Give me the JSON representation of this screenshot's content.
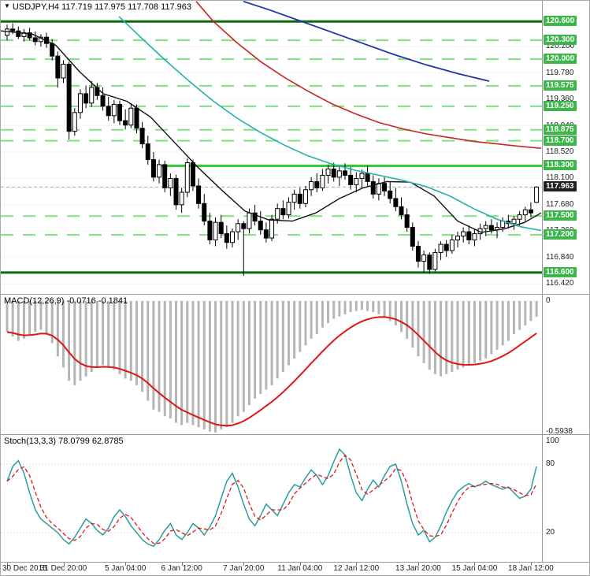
{
  "window": {
    "title": "USDJPY,H4 117.719 117.975 117.708 117.963"
  },
  "panels": {
    "macd_label": "MACD(12,26,9) -0.0716 -0.1841",
    "stoch_label": "Stoch(13,3,3) 78.0799 62.8785"
  },
  "colors": {
    "level_tag_bg": "#3cb54a",
    "current_tag_bg": "#1f1f1f",
    "tag_text": "#ffffff",
    "dark_level": "#0c6b0c",
    "dashed_level": "#82e082",
    "bright_level": "#33cc33",
    "grid": "#d9d9d9",
    "candle_up_fill": "#ffffff",
    "candle_down_fill": "#000000",
    "candle_stroke": "#000000",
    "ma_fast": "#111111",
    "ma_mid": "#20b2aa",
    "ma_slow": "#cc2222",
    "ma_slowest": "#2233aa",
    "macd_hist": "#b5b5b5",
    "macd_signal": "#e01515",
    "stoch_main": "#2a9d9d",
    "stoch_signal": "#e01515",
    "current_line": "#aaaaaa",
    "axis_text": "#222222"
  },
  "chart_data": {
    "type": "candlestick",
    "symbol": "USDJPY",
    "timeframe": "H4",
    "title": "USDJPY,H4",
    "ohlc_current": {
      "open": 117.719,
      "high": 117.975,
      "low": 117.708,
      "close": 117.963
    },
    "price_axis": {
      "max": 120.93,
      "min": 116.26,
      "plain_labels": [
        "120.200",
        "119.780",
        "119.360",
        "118.940",
        "118.520",
        "118.100",
        "117.680",
        "117.260",
        "116.840",
        "116.420"
      ],
      "tag_labels": [
        "120.600",
        "120.300",
        "120.000",
        "119.575",
        "119.250",
        "118.875",
        "118.700",
        "118.300",
        "117.500",
        "117.200",
        "116.600"
      ],
      "current_tag": "117.963"
    },
    "levels": {
      "dashed": [
        120.3,
        120.0,
        119.575,
        119.25,
        118.875,
        118.7,
        117.5,
        117.2
      ],
      "solid_dark": [
        120.6,
        116.6
      ],
      "bright": {
        "price": 118.3,
        "start_index": 27
      },
      "current_price": 117.963
    },
    "candles": [
      [
        120.38,
        120.55,
        120.3,
        120.48
      ],
      [
        120.48,
        120.57,
        120.4,
        120.45
      ],
      [
        120.45,
        120.52,
        120.32,
        120.36
      ],
      [
        120.36,
        120.48,
        120.28,
        120.42
      ],
      [
        120.42,
        120.5,
        120.3,
        120.34
      ],
      [
        120.34,
        120.44,
        120.22,
        120.28
      ],
      [
        120.28,
        120.4,
        120.2,
        120.35
      ],
      [
        120.35,
        120.42,
        120.18,
        120.25
      ],
      [
        120.25,
        120.32,
        119.98,
        120.05
      ],
      [
        120.05,
        120.12,
        119.55,
        119.7
      ],
      [
        119.7,
        119.98,
        119.62,
        119.92
      ],
      [
        119.92,
        119.96,
        118.72,
        118.85
      ],
      [
        118.85,
        119.22,
        118.78,
        119.15
      ],
      [
        119.15,
        119.52,
        119.05,
        119.45
      ],
      [
        119.45,
        119.58,
        119.22,
        119.3
      ],
      [
        119.3,
        119.65,
        119.24,
        119.55
      ],
      [
        119.55,
        119.62,
        119.35,
        119.42
      ],
      [
        119.42,
        119.55,
        119.18,
        119.25
      ],
      [
        119.25,
        119.4,
        119.02,
        119.1
      ],
      [
        119.1,
        119.35,
        118.98,
        119.28
      ],
      [
        119.28,
        119.34,
        118.95,
        119.02
      ],
      [
        119.02,
        119.2,
        118.88,
        118.95
      ],
      [
        118.95,
        119.3,
        118.9,
        119.22
      ],
      [
        119.22,
        119.28,
        118.82,
        118.9
      ],
      [
        118.9,
        119.0,
        118.58,
        118.65
      ],
      [
        118.65,
        118.78,
        118.32,
        118.4
      ],
      [
        118.4,
        118.52,
        118.05,
        118.12
      ],
      [
        118.12,
        118.4,
        118.02,
        118.32
      ],
      [
        118.32,
        118.38,
        117.88,
        117.95
      ],
      [
        117.95,
        118.18,
        117.82,
        118.1
      ],
      [
        118.1,
        118.16,
        117.6,
        117.68
      ],
      [
        117.68,
        117.95,
        117.55,
        117.88
      ],
      [
        117.88,
        118.42,
        117.8,
        118.35
      ],
      [
        118.35,
        118.4,
        117.9,
        117.98
      ],
      [
        117.98,
        118.1,
        117.62,
        117.7
      ],
      [
        117.7,
        117.85,
        117.35,
        117.42
      ],
      [
        117.42,
        117.55,
        117.05,
        117.12
      ],
      [
        117.12,
        117.48,
        117.02,
        117.4
      ],
      [
        117.4,
        117.52,
        117.15,
        117.22
      ],
      [
        117.22,
        117.35,
        116.98,
        117.08
      ],
      [
        117.08,
        117.3,
        117.0,
        117.25
      ],
      [
        117.25,
        117.45,
        117.12,
        117.38
      ],
      [
        117.38,
        117.42,
        116.55,
        117.3
      ],
      [
        117.3,
        117.62,
        117.22,
        117.55
      ],
      [
        117.55,
        117.68,
        117.35,
        117.42
      ],
      [
        117.42,
        117.58,
        117.2,
        117.28
      ],
      [
        117.28,
        117.4,
        117.08,
        117.15
      ],
      [
        117.15,
        117.52,
        117.1,
        117.45
      ],
      [
        117.45,
        117.7,
        117.38,
        117.62
      ],
      [
        117.62,
        117.75,
        117.45,
        117.52
      ],
      [
        117.52,
        117.8,
        117.46,
        117.72
      ],
      [
        117.72,
        117.92,
        117.6,
        117.85
      ],
      [
        117.85,
        117.95,
        117.62,
        117.7
      ],
      [
        117.7,
        117.98,
        117.64,
        117.92
      ],
      [
        117.92,
        118.12,
        117.82,
        118.05
      ],
      [
        118.05,
        118.18,
        117.88,
        117.95
      ],
      [
        117.95,
        118.25,
        117.9,
        118.15
      ],
      [
        118.15,
        118.32,
        118.02,
        118.25
      ],
      [
        118.25,
        118.35,
        118.05,
        118.12
      ],
      [
        118.12,
        118.3,
        117.98,
        118.22
      ],
      [
        118.22,
        118.34,
        118.08,
        118.15
      ],
      [
        118.15,
        118.28,
        117.92,
        118.0
      ],
      [
        118.0,
        118.2,
        117.88,
        118.1
      ],
      [
        118.1,
        118.24,
        117.95,
        118.18
      ],
      [
        118.18,
        118.3,
        117.98,
        118.05
      ],
      [
        118.05,
        118.15,
        117.78,
        117.85
      ],
      [
        117.85,
        118.1,
        117.75,
        118.02
      ],
      [
        118.02,
        118.12,
        117.82,
        117.9
      ],
      [
        117.9,
        118.05,
        117.7,
        117.78
      ],
      [
        117.78,
        117.95,
        117.58,
        117.65
      ],
      [
        117.65,
        117.8,
        117.45,
        117.52
      ],
      [
        117.52,
        117.62,
        117.25,
        117.32
      ],
      [
        117.32,
        117.4,
        116.95,
        117.02
      ],
      [
        117.02,
        117.1,
        116.68,
        116.78
      ],
      [
        116.78,
        116.95,
        116.6,
        116.88
      ],
      [
        116.88,
        116.92,
        116.58,
        116.65
      ],
      [
        116.65,
        116.98,
        116.62,
        116.92
      ],
      [
        116.92,
        117.1,
        116.8,
        117.05
      ],
      [
        117.05,
        117.12,
        116.85,
        116.95
      ],
      [
        116.95,
        117.2,
        116.9,
        117.12
      ],
      [
        117.12,
        117.25,
        117.0,
        117.18
      ],
      [
        117.18,
        117.32,
        117.08,
        117.25
      ],
      [
        117.25,
        117.35,
        117.05,
        117.12
      ],
      [
        117.12,
        117.3,
        117.02,
        117.22
      ],
      [
        117.22,
        117.38,
        117.12,
        117.3
      ],
      [
        117.3,
        117.42,
        117.18,
        117.35
      ],
      [
        117.35,
        117.45,
        117.22,
        117.28
      ],
      [
        117.28,
        117.4,
        117.15,
        117.32
      ],
      [
        117.32,
        117.48,
        117.25,
        117.42
      ],
      [
        117.42,
        117.52,
        117.3,
        117.38
      ],
      [
        117.38,
        117.5,
        117.28,
        117.45
      ],
      [
        117.45,
        117.58,
        117.35,
        117.52
      ],
      [
        117.52,
        117.65,
        117.42,
        117.6
      ],
      [
        117.6,
        117.72,
        117.48,
        117.55
      ],
      [
        117.719,
        117.975,
        117.708,
        117.963
      ]
    ],
    "moving_averages": [
      {
        "name": "ma-fast-black",
        "color_key": "ma_fast",
        "width": 1.4,
        "points": [
          [
            0,
            120.45
          ],
          [
            40,
            120.4
          ],
          [
            70,
            120.22
          ],
          [
            100,
            119.8
          ],
          [
            130,
            119.45
          ],
          [
            160,
            119.33
          ],
          [
            190,
            119.08
          ],
          [
            220,
            118.68
          ],
          [
            250,
            118.28
          ],
          [
            280,
            117.92
          ],
          [
            310,
            117.58
          ],
          [
            340,
            117.44
          ],
          [
            370,
            117.42
          ],
          [
            400,
            117.55
          ],
          [
            430,
            117.78
          ],
          [
            460,
            117.95
          ],
          [
            490,
            118.05
          ],
          [
            520,
            118.04
          ],
          [
            550,
            117.82
          ],
          [
            580,
            117.42
          ],
          [
            610,
            117.24
          ],
          [
            640,
            117.3
          ],
          [
            665,
            117.4
          ],
          [
            686,
            117.55
          ]
        ]
      },
      {
        "name": "ma-mid-teal",
        "color_key": "ma_mid",
        "width": 1.6,
        "points": [
          [
            150,
            120.68
          ],
          [
            180,
            120.32
          ],
          [
            210,
            119.97
          ],
          [
            240,
            119.64
          ],
          [
            270,
            119.33
          ],
          [
            300,
            119.06
          ],
          [
            330,
            118.83
          ],
          [
            360,
            118.63
          ],
          [
            390,
            118.46
          ],
          [
            420,
            118.33
          ],
          [
            450,
            118.23
          ],
          [
            480,
            118.15
          ],
          [
            510,
            118.07
          ],
          [
            540,
            117.97
          ],
          [
            570,
            117.82
          ],
          [
            600,
            117.62
          ],
          [
            630,
            117.45
          ],
          [
            660,
            117.33
          ],
          [
            686,
            117.27
          ]
        ]
      },
      {
        "name": "ma-slow-red",
        "color_key": "ma_slow",
        "width": 1.6,
        "points": [
          [
            248,
            120.92
          ],
          [
            270,
            120.6
          ],
          [
            300,
            120.26
          ],
          [
            330,
            119.96
          ],
          [
            360,
            119.71
          ],
          [
            390,
            119.49
          ],
          [
            420,
            119.29
          ],
          [
            450,
            119.13
          ],
          [
            480,
            118.99
          ],
          [
            510,
            118.89
          ],
          [
            540,
            118.81
          ],
          [
            570,
            118.75
          ],
          [
            600,
            118.69
          ],
          [
            630,
            118.65
          ],
          [
            660,
            118.61
          ],
          [
            686,
            118.58
          ]
        ]
      },
      {
        "name": "ma-slowest-blue",
        "color_key": "ma_slowest",
        "width": 1.8,
        "points": [
          [
            308,
            120.92
          ],
          [
            340,
            120.79
          ],
          [
            380,
            120.61
          ],
          [
            420,
            120.43
          ],
          [
            460,
            120.25
          ],
          [
            500,
            120.07
          ],
          [
            540,
            119.91
          ],
          [
            580,
            119.77
          ],
          [
            620,
            119.65
          ]
        ]
      }
    ],
    "macd": {
      "name": "MACD(12,26,9)",
      "value": -0.0716,
      "signal_value": -0.1841,
      "axis_top_label": "0",
      "axis_bottom_label": "-0.5938",
      "min": -0.5938,
      "values": [
        -0.14,
        -0.16,
        -0.18,
        -0.17,
        -0.15,
        -0.14,
        -0.13,
        -0.15,
        -0.19,
        -0.25,
        -0.3,
        -0.36,
        -0.38,
        -0.36,
        -0.34,
        -0.32,
        -0.3,
        -0.29,
        -0.3,
        -0.31,
        -0.33,
        -0.35,
        -0.36,
        -0.38,
        -0.41,
        -0.45,
        -0.49,
        -0.5,
        -0.52,
        -0.53,
        -0.55,
        -0.56,
        -0.55,
        -0.56,
        -0.57,
        -0.58,
        -0.59,
        -0.5938,
        -0.58,
        -0.57,
        -0.55,
        -0.52,
        -0.5,
        -0.47,
        -0.44,
        -0.42,
        -0.4,
        -0.38,
        -0.35,
        -0.32,
        -0.29,
        -0.26,
        -0.23,
        -0.2,
        -0.17,
        -0.15,
        -0.12,
        -0.1,
        -0.08,
        -0.07,
        -0.06,
        -0.05,
        -0.045,
        -0.04,
        -0.045,
        -0.05,
        -0.06,
        -0.07,
        -0.09,
        -0.11,
        -0.14,
        -0.17,
        -0.21,
        -0.25,
        -0.28,
        -0.31,
        -0.33,
        -0.34,
        -0.33,
        -0.32,
        -0.31,
        -0.3,
        -0.29,
        -0.28,
        -0.27,
        -0.26,
        -0.24,
        -0.22,
        -0.2,
        -0.18,
        -0.15,
        -0.13,
        -0.11,
        -0.09,
        -0.0716
      ]
    },
    "stoch": {
      "name": "Stoch(13,3,3)",
      "value": 78.0799,
      "signal_value": 62.8785,
      "axis_labels": [
        100,
        80,
        20
      ],
      "level_lines": [
        80,
        20
      ],
      "range": [
        0,
        100
      ],
      "values": [
        65,
        78,
        83,
        72,
        55,
        40,
        32,
        28,
        24,
        20,
        14,
        10,
        16,
        24,
        32,
        28,
        22,
        18,
        24,
        34,
        40,
        34,
        26,
        20,
        14,
        10,
        8,
        14,
        22,
        28,
        18,
        14,
        20,
        28,
        24,
        18,
        25,
        35,
        50,
        65,
        72,
        60,
        45,
        32,
        26,
        35,
        45,
        40,
        35,
        45,
        55,
        62,
        60,
        68,
        75,
        70,
        62,
        70,
        82,
        93,
        88,
        70,
        55,
        48,
        58,
        66,
        60,
        70,
        78,
        80,
        65,
        45,
        28,
        18,
        22,
        12,
        16,
        26,
        38,
        48,
        56,
        60,
        63,
        60,
        62,
        65,
        62,
        60,
        58,
        60,
        55,
        50,
        52,
        58,
        78.08
      ]
    },
    "time_axis": [
      {
        "label": "30 Dec 2015",
        "index": 0
      },
      {
        "label": "31 Dec 20:00",
        "index": 10
      },
      {
        "label": "5 Jan 04:00",
        "index": 21
      },
      {
        "label": "6 Jan 12:00",
        "index": 31
      },
      {
        "label": "7 Jan 20:00",
        "index": 42
      },
      {
        "label": "11 Jan 04:00",
        "index": 52
      },
      {
        "label": "12 Jan 12:00",
        "index": 62
      },
      {
        "label": "13 Jan 20:00",
        "index": 73
      },
      {
        "label": "15 Jan 04:00",
        "index": 83
      },
      {
        "label": "18 Jan 12:00",
        "index": 93
      }
    ]
  }
}
